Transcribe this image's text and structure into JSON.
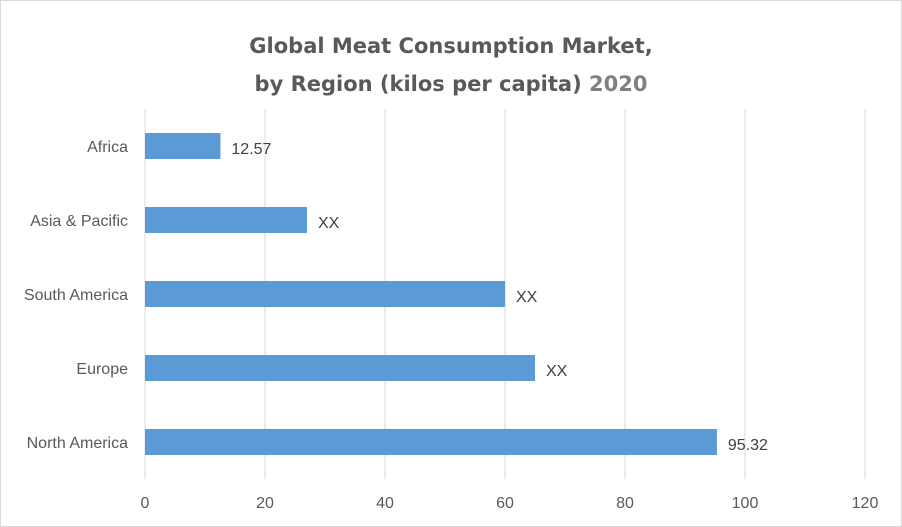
{
  "chart_data": {
    "type": "bar",
    "orientation": "horizontal",
    "title_line1": "Global Meat Consumption Market,",
    "title_line2": "by Region (kilos per capita)",
    "title_year": "2020",
    "categories": [
      "Africa",
      "Asia & Pacific",
      "South America",
      "Europe",
      "North America"
    ],
    "values": [
      12.57,
      27,
      60,
      65,
      95.32
    ],
    "data_labels": [
      "12.57",
      "XX",
      "XX",
      "XX",
      "95.32"
    ],
    "xlim": [
      0,
      120
    ],
    "x_ticks": [
      0,
      20,
      40,
      60,
      80,
      100,
      120
    ],
    "grid": true,
    "legend": "none",
    "bar_color": "#5b9bd5",
    "grid_color": "#d9d9d9"
  }
}
